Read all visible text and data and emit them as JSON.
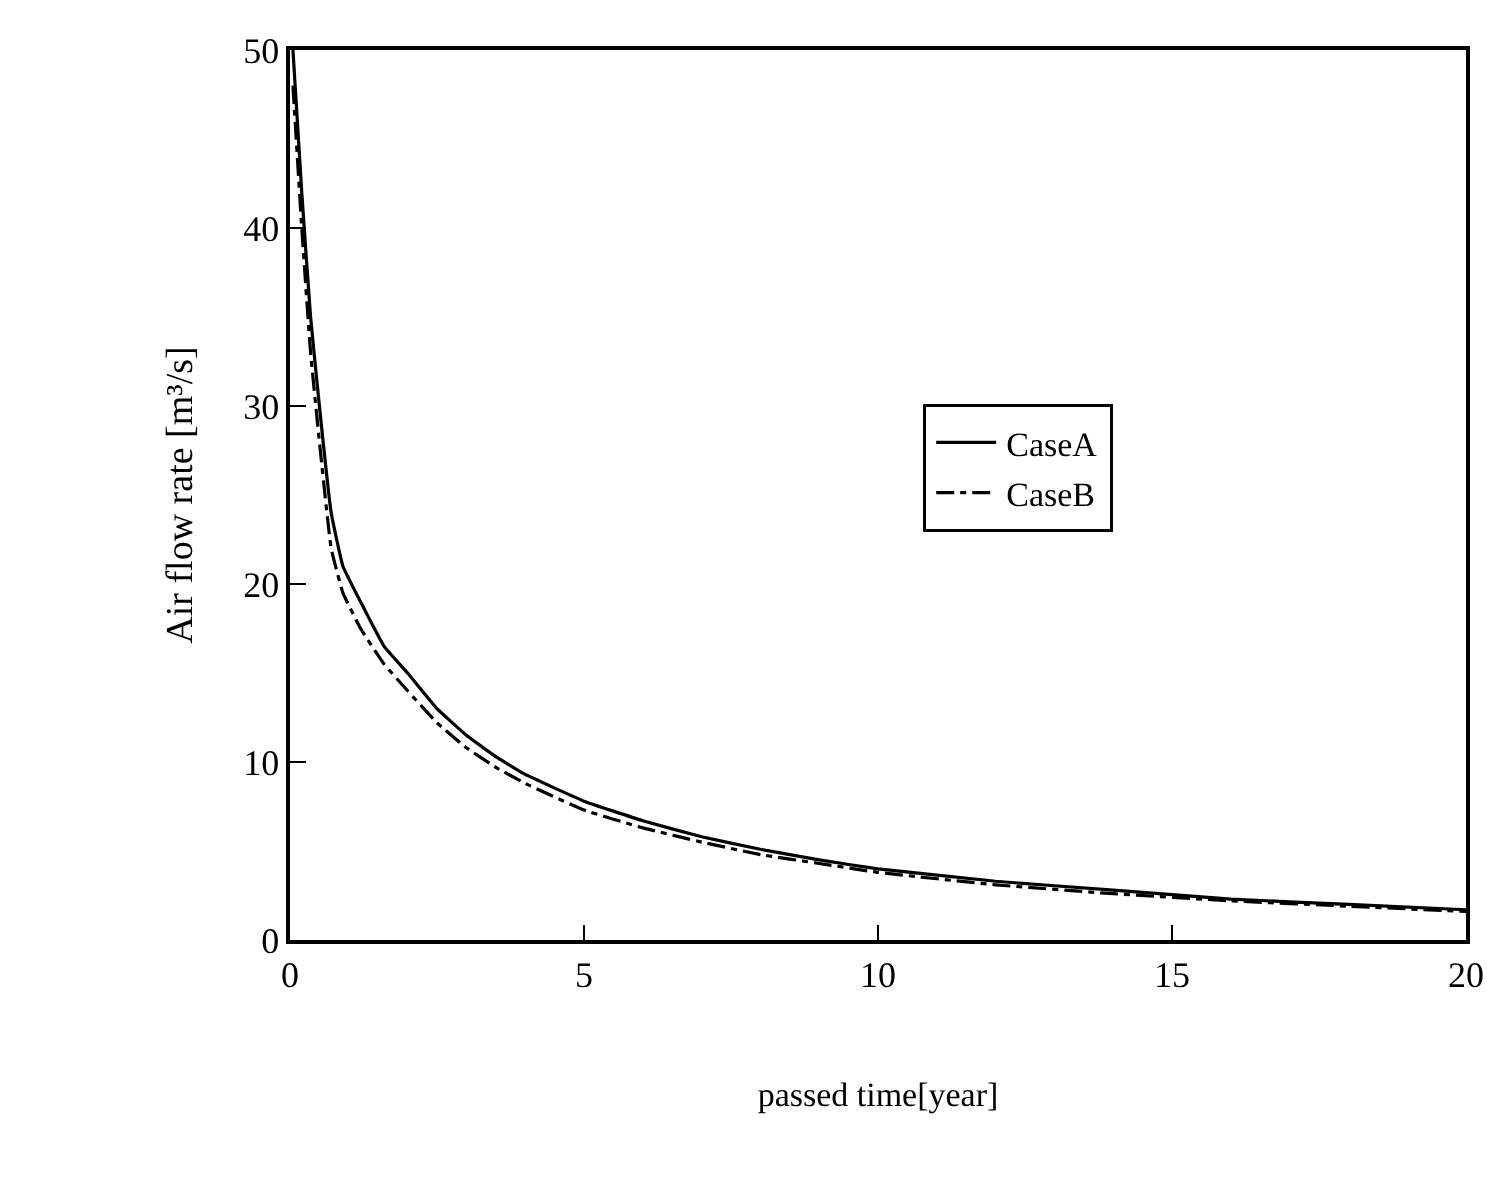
{
  "chart_data": {
    "type": "line",
    "xlabel": "passed time[year]",
    "ylabel": "Air flow rate [m³/s]",
    "xlim": [
      0,
      20
    ],
    "ylim": [
      0,
      50
    ],
    "xticks": [
      0,
      5,
      10,
      15,
      20
    ],
    "yticks": [
      0,
      10,
      20,
      30,
      40,
      50
    ],
    "legend": "right",
    "marker": "none",
    "series": [
      {
        "name": "CaseA",
        "color": "#000000",
        "line_style": "solid",
        "x": [
          0.05,
          0.2,
          0.35,
          0.5,
          0.7,
          0.9,
          1.2,
          1.6,
          2.0,
          2.5,
          3.0,
          3.5,
          4.0,
          5.0,
          6.0,
          7.0,
          8.0,
          9.0,
          10.0,
          12.0,
          14.0,
          16.0,
          18.0,
          20.0
        ],
        "values": [
          50,
          42,
          35,
          30,
          24,
          21,
          19,
          16.5,
          15,
          13,
          11.5,
          10.3,
          9.3,
          7.8,
          6.7,
          5.8,
          5.1,
          4.5,
          4.0,
          3.3,
          2.8,
          2.3,
          2.0,
          1.7
        ]
      },
      {
        "name": "CaseB",
        "color": "#000000",
        "line_style": "dashdot",
        "x": [
          0.05,
          0.2,
          0.35,
          0.5,
          0.7,
          0.9,
          1.2,
          1.6,
          2.0,
          2.5,
          3.0,
          3.5,
          4.0,
          5.0,
          6.0,
          7.0,
          8.0,
          9.0,
          10.0,
          12.0,
          14.0,
          16.0,
          18.0,
          20.0
        ],
        "values": [
          48,
          40,
          33,
          28,
          22,
          19.5,
          17.5,
          15.5,
          14,
          12.2,
          10.8,
          9.7,
          8.8,
          7.3,
          6.3,
          5.5,
          4.8,
          4.3,
          3.8,
          3.1,
          2.6,
          2.2,
          1.9,
          1.6
        ]
      }
    ]
  }
}
